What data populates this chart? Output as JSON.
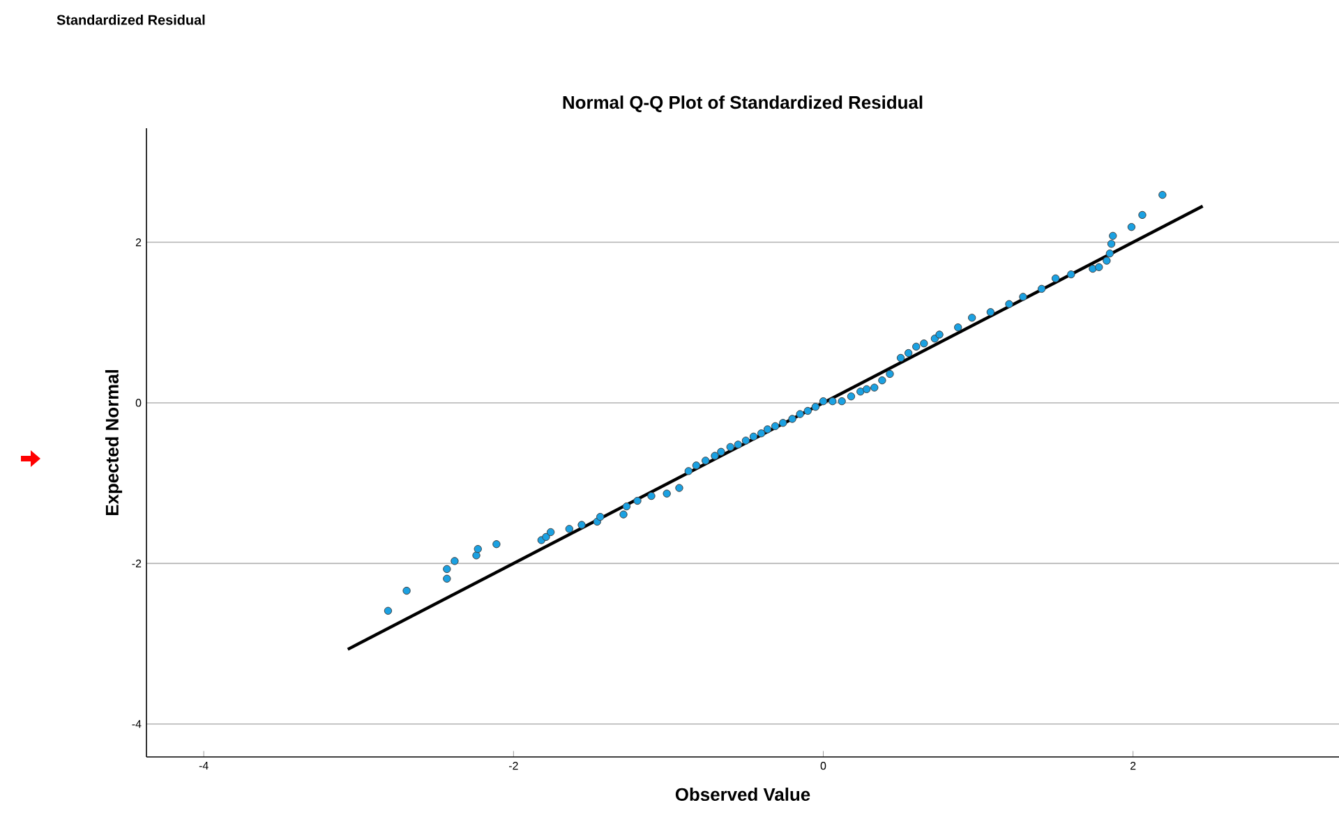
{
  "chart_data": {
    "type": "scatter",
    "title": "Normal Q-Q Plot of Standardized Residual",
    "xlabel": "Observed Value",
    "ylabel": "Expected Normal",
    "annotations": [
      "Standardized Residual"
    ],
    "xlim": [
      -4.37,
      3.33
    ],
    "ylim": [
      -4.41,
      3.42
    ],
    "xticks": [
      -4,
      -2,
      0,
      2
    ],
    "yticks": [
      -4,
      -2,
      0,
      2
    ],
    "grid": "y",
    "marker": "circle",
    "series": [
      {
        "color": "#1ba1e2",
        "x": [
          -2.81,
          -2.69,
          -2.43,
          -2.43,
          -2.38,
          -2.24,
          -2.23,
          -2.11,
          -1.82,
          -1.79,
          -1.76,
          -1.64,
          -1.56,
          -1.46,
          -1.44,
          -1.29,
          -1.27,
          -1.2,
          -1.11,
          -1.01,
          -0.93,
          -0.87,
          -0.82,
          -0.76,
          -0.7,
          -0.66,
          -0.6,
          -0.55,
          -0.5,
          -0.45,
          -0.4,
          -0.36,
          -0.31,
          -0.26,
          -0.2,
          -0.15,
          -0.1,
          -0.05,
          0.0,
          0.06,
          0.12,
          0.18,
          0.24,
          0.28,
          0.33,
          0.38,
          0.43,
          0.5,
          0.55,
          0.6,
          0.65,
          0.72,
          0.75,
          0.87,
          0.96,
          1.08,
          1.2,
          1.29,
          1.41,
          1.5,
          1.6,
          1.74,
          1.78,
          1.83,
          1.85,
          1.86,
          1.87,
          1.99,
          2.06,
          2.19
        ],
        "values": [
          -2.59,
          -2.34,
          -2.19,
          -2.07,
          -1.97,
          -1.9,
          -1.82,
          -1.76,
          -1.71,
          -1.67,
          -1.61,
          -1.57,
          -1.52,
          -1.48,
          -1.42,
          -1.39,
          -1.29,
          -1.22,
          -1.16,
          -1.13,
          -1.06,
          -0.85,
          -0.78,
          -0.72,
          -0.66,
          -0.61,
          -0.55,
          -0.52,
          -0.47,
          -0.42,
          -0.38,
          -0.33,
          -0.29,
          -0.25,
          -0.2,
          -0.14,
          -0.1,
          -0.05,
          0.02,
          0.02,
          0.02,
          0.08,
          0.14,
          0.17,
          0.19,
          0.28,
          0.36,
          0.56,
          0.62,
          0.7,
          0.74,
          0.8,
          0.85,
          0.94,
          1.06,
          1.13,
          1.23,
          1.32,
          1.42,
          1.55,
          1.6,
          1.67,
          1.69,
          1.77,
          1.86,
          1.98,
          2.08,
          2.19,
          2.34,
          2.59
        ]
      },
      {
        "type": "line",
        "color": "#000000",
        "line_style": "solid",
        "marker": "none",
        "x": [
          -3.07,
          2.45
        ],
        "values": [
          -3.07,
          2.45
        ]
      }
    ]
  }
}
